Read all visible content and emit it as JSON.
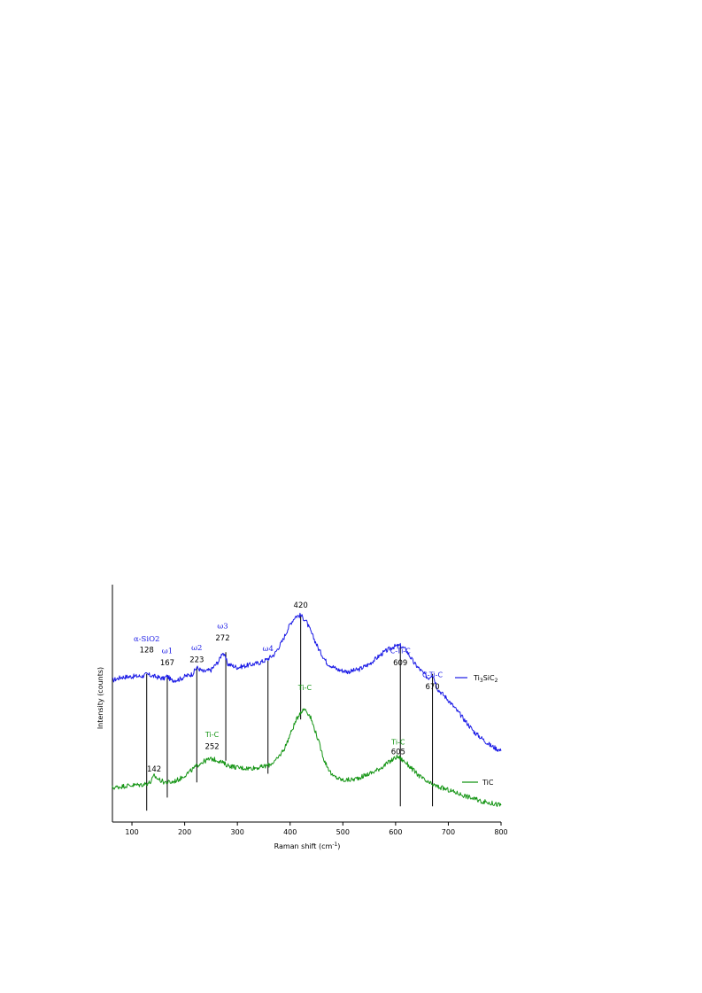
{
  "chart_data": {
    "type": "line",
    "title": "",
    "xlabel": "Raman shift (cm",
    "xlabel_sup": "-1",
    "xlabel_close": ")",
    "ylabel": "Intensity (counts)",
    "xlim": [
      63,
      800
    ],
    "ylim": [
      0,
      1
    ],
    "grid": false,
    "legend_placement": "right",
    "x_ticks": [
      100,
      200,
      300,
      400,
      500,
      600,
      700,
      800
    ],
    "colors": {
      "blue": "#1a1ae6",
      "green": "#139413",
      "axis": "#000000"
    },
    "series": [
      {
        "name_main": "Ti",
        "name_sub1": "3",
        "name_mid": "SiC",
        "name_sub2": "2",
        "color": "#1a1ae6",
        "points": [
          [
            63,
            0.62
          ],
          [
            80,
            0.635
          ],
          [
            100,
            0.638
          ],
          [
            120,
            0.64
          ],
          [
            128,
            0.648
          ],
          [
            140,
            0.64
          ],
          [
            160,
            0.628
          ],
          [
            167,
            0.64
          ],
          [
            175,
            0.62
          ],
          [
            190,
            0.625
          ],
          [
            200,
            0.638
          ],
          [
            215,
            0.65
          ],
          [
            223,
            0.68
          ],
          [
            235,
            0.66
          ],
          [
            250,
            0.668
          ],
          [
            265,
            0.71
          ],
          [
            272,
            0.752
          ],
          [
            282,
            0.695
          ],
          [
            300,
            0.68
          ],
          [
            320,
            0.69
          ],
          [
            340,
            0.7
          ],
          [
            355,
            0.715
          ],
          [
            370,
            0.74
          ],
          [
            385,
            0.8
          ],
          [
            400,
            0.88
          ],
          [
            410,
            0.915
          ],
          [
            420,
            0.92
          ],
          [
            430,
            0.895
          ],
          [
            440,
            0.84
          ],
          [
            455,
            0.76
          ],
          [
            470,
            0.7
          ],
          [
            490,
            0.67
          ],
          [
            510,
            0.66
          ],
          [
            530,
            0.67
          ],
          [
            550,
            0.695
          ],
          [
            575,
            0.745
          ],
          [
            595,
            0.775
          ],
          [
            609,
            0.78
          ],
          [
            620,
            0.76
          ],
          [
            635,
            0.7
          ],
          [
            650,
            0.66
          ],
          [
            662,
            0.63
          ],
          [
            670,
            0.65
          ],
          [
            680,
            0.58
          ],
          [
            700,
            0.53
          ],
          [
            720,
            0.47
          ],
          [
            750,
            0.38
          ],
          [
            780,
            0.32
          ],
          [
            800,
            0.295
          ]
        ]
      },
      {
        "name_main": "TiC",
        "color": "#139413",
        "points": [
          [
            63,
            0.125
          ],
          [
            90,
            0.135
          ],
          [
            120,
            0.14
          ],
          [
            135,
            0.15
          ],
          [
            142,
            0.18
          ],
          [
            150,
            0.165
          ],
          [
            160,
            0.152
          ],
          [
            175,
            0.15
          ],
          [
            190,
            0.165
          ],
          [
            210,
            0.2
          ],
          [
            230,
            0.24
          ],
          [
            245,
            0.255
          ],
          [
            252,
            0.258
          ],
          [
            265,
            0.25
          ],
          [
            280,
            0.23
          ],
          [
            300,
            0.218
          ],
          [
            320,
            0.215
          ],
          [
            345,
            0.22
          ],
          [
            360,
            0.23
          ],
          [
            375,
            0.255
          ],
          [
            390,
            0.31
          ],
          [
            405,
            0.4
          ],
          [
            418,
            0.47
          ],
          [
            428,
            0.49
          ],
          [
            438,
            0.455
          ],
          [
            450,
            0.37
          ],
          [
            465,
            0.25
          ],
          [
            480,
            0.18
          ],
          [
            500,
            0.16
          ],
          [
            520,
            0.163
          ],
          [
            540,
            0.18
          ],
          [
            560,
            0.2
          ],
          [
            580,
            0.23
          ],
          [
            600,
            0.265
          ],
          [
            605,
            0.268
          ],
          [
            620,
            0.24
          ],
          [
            640,
            0.19
          ],
          [
            660,
            0.15
          ],
          [
            680,
            0.13
          ],
          [
            700,
            0.115
          ],
          [
            730,
            0.09
          ],
          [
            760,
            0.065
          ],
          [
            800,
            0.045
          ]
        ]
      }
    ],
    "reference_lines": [
      {
        "x": 128,
        "top": 0.65,
        "bottom": 0.02
      },
      {
        "x": 167,
        "top": 0.64,
        "bottom": 0.08
      },
      {
        "x": 223,
        "top": 0.68,
        "bottom": 0.15
      },
      {
        "x": 278,
        "top": 0.75,
        "bottom": 0.25
      },
      {
        "x": 358,
        "top": 0.71,
        "bottom": 0.19
      },
      {
        "x": 420,
        "top": 0.92,
        "bottom": 0.44
      },
      {
        "x": 609,
        "top": 0.78,
        "bottom": 0.04
      },
      {
        "x": 670,
        "top": 0.65,
        "bottom": 0.04
      }
    ],
    "annotations": [
      {
        "x": 128,
        "label": "α-SiO2",
        "value": "128",
        "color": "#1a1ae6",
        "label_y": 0.8,
        "value_y": 0.75,
        "serif": true
      },
      {
        "x": 167,
        "label": "ω1",
        "value": "167",
        "color": "#1a1ae6",
        "label_y": 0.745,
        "value_y": 0.69,
        "serif": true
      },
      {
        "x": 223,
        "label": "ω2",
        "value": "223",
        "color": "#1a1ae6",
        "label_y": 0.76,
        "value_y": 0.705,
        "serif": true
      },
      {
        "x": 272,
        "label": "ω3",
        "value": "272",
        "color": "#1a1ae6",
        "label_y": 0.86,
        "value_y": 0.805,
        "serif": true
      },
      {
        "x": 358,
        "label": "ω4",
        "value": "",
        "color": "#1a1ae6",
        "label_y": 0.755,
        "value_y": 0.755,
        "serif": true
      },
      {
        "x": 420,
        "label": "",
        "value": "420",
        "color": "#1a1ae6",
        "label_y": 0.955,
        "value_y": 0.955,
        "serif": false
      },
      {
        "x": 609,
        "label": "C-Ti-C",
        "value": "609",
        "color": "#1a1ae6",
        "label_y": 0.745,
        "value_y": 0.69,
        "serif": false
      },
      {
        "x": 670,
        "label": "C-Ti-C",
        "value": "670",
        "color": "#1a1ae6",
        "label_y": 0.635,
        "value_y": 0.58,
        "serif": false
      },
      {
        "x": 142,
        "label": "",
        "value": "142",
        "color": "#139413",
        "label_y": 0.2,
        "value_y": 0.2,
        "serif": false
      },
      {
        "x": 252,
        "label": "Ti-C",
        "value": "252",
        "color": "#139413",
        "label_y": 0.36,
        "value_y": 0.305,
        "serif": false
      },
      {
        "x": 428,
        "label": "Ti-C",
        "value": "",
        "color": "#139413",
        "label_y": 0.575,
        "value_y": 0.575,
        "serif": false
      },
      {
        "x": 605,
        "label": "Ti-C",
        "value": "605",
        "color": "#139413",
        "label_y": 0.325,
        "value_y": 0.28,
        "serif": false
      }
    ]
  }
}
